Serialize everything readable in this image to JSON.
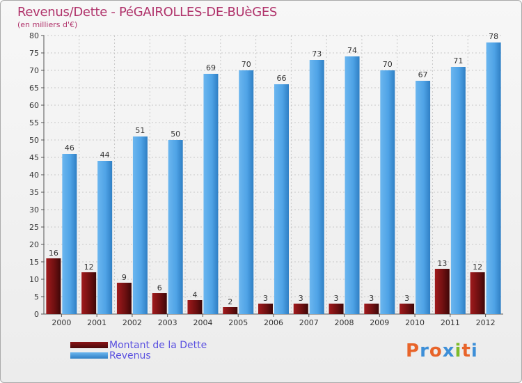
{
  "header": {
    "title": "Revenus/Dette - PéGAIROLLES-DE-BUèGES",
    "subtitle": "(en milliers d'€)"
  },
  "legend": {
    "debt_label": "Montant de la Dette",
    "revenue_label": "Revenus"
  },
  "logo": {
    "letters": [
      "P",
      "r",
      "o",
      "x",
      "i",
      "t",
      "i"
    ]
  },
  "colors": {
    "debt": "#6b0f10",
    "revenue": "#4fa3e6",
    "title": "#b0336b",
    "legend_text": "#5a50e0",
    "logo": [
      "#e8642a",
      "#3d8fd8",
      "#e8642a",
      "#3d8fd8",
      "#7dbb2a",
      "#e8642a",
      "#3d8fd8"
    ]
  },
  "chart_data": {
    "type": "bar",
    "categories": [
      "2000",
      "2001",
      "2002",
      "2003",
      "2004",
      "2005",
      "2006",
      "2007",
      "2008",
      "2009",
      "2010",
      "2011",
      "2012"
    ],
    "series": [
      {
        "name": "Montant de la Dette",
        "values": [
          16,
          12,
          9,
          6,
          4,
          2,
          3,
          3,
          3,
          3,
          3,
          13,
          12
        ]
      },
      {
        "name": "Revenus",
        "values": [
          46,
          44,
          51,
          50,
          69,
          70,
          66,
          73,
          74,
          70,
          67,
          71,
          78
        ]
      }
    ],
    "ylim": [
      0,
      80
    ],
    "yticks": [
      0,
      5,
      10,
      15,
      20,
      25,
      30,
      35,
      40,
      45,
      50,
      55,
      60,
      65,
      70,
      75,
      80
    ],
    "grid": true
  }
}
